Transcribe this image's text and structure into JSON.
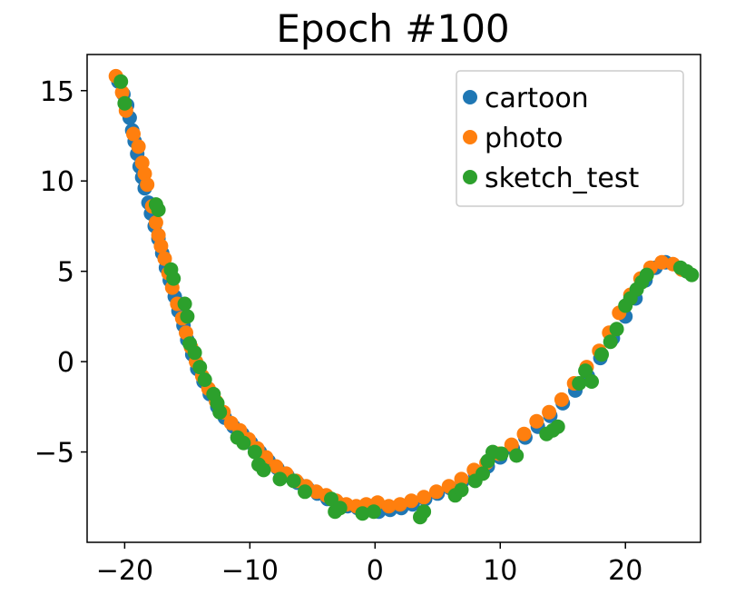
{
  "chart_data": {
    "type": "scatter",
    "title": "Epoch #100",
    "xlabel": "",
    "ylabel": "",
    "xlim": [
      -23,
      26
    ],
    "ylim": [
      -10,
      17
    ],
    "xticks": [
      -20,
      -10,
      0,
      10,
      20
    ],
    "xtick_labels": [
      "−20",
      "−10",
      "0",
      "10",
      "20"
    ],
    "yticks": [
      -5,
      0,
      5,
      10,
      15
    ],
    "ytick_labels": [
      "−5",
      "0",
      "5",
      "10",
      "15"
    ],
    "grid": false,
    "legend_position": "top-right",
    "series": [
      {
        "name": "cartoon",
        "color": "#1f77b4",
        "points": [
          [
            -20.5,
            15.5
          ],
          [
            -20.1,
            14.8
          ],
          [
            -19.8,
            14.2
          ],
          [
            -19.6,
            13.5
          ],
          [
            -19.4,
            12.8
          ],
          [
            -19.2,
            12.2
          ],
          [
            -19.0,
            11.5
          ],
          [
            -18.8,
            10.8
          ],
          [
            -18.6,
            10.2
          ],
          [
            -18.4,
            9.6
          ],
          [
            -18.1,
            8.8
          ],
          [
            -17.9,
            8.2
          ],
          [
            -17.6,
            7.5
          ],
          [
            -17.3,
            6.8
          ],
          [
            -17.0,
            6.0
          ],
          [
            -16.7,
            5.2
          ],
          [
            -16.4,
            4.5
          ],
          [
            -16.0,
            3.6
          ],
          [
            -15.7,
            2.8
          ],
          [
            -15.3,
            2.0
          ],
          [
            -15.0,
            1.2
          ],
          [
            -14.6,
            0.4
          ],
          [
            -14.2,
            -0.4
          ],
          [
            -13.7,
            -1.1
          ],
          [
            -13.2,
            -1.8
          ],
          [
            -12.6,
            -2.5
          ],
          [
            -12.0,
            -3.1
          ],
          [
            -11.3,
            -3.6
          ],
          [
            -10.6,
            -4.0
          ],
          [
            -9.9,
            -4.5
          ],
          [
            -9.2,
            -5.0
          ],
          [
            -8.5,
            -5.5
          ],
          [
            -7.8,
            -5.9
          ],
          [
            -7.0,
            -6.3
          ],
          [
            -6.2,
            -6.7
          ],
          [
            -5.4,
            -7.0
          ],
          [
            -4.6,
            -7.3
          ],
          [
            -3.8,
            -7.6
          ],
          [
            -3.0,
            -7.8
          ],
          [
            -2.2,
            -8.0
          ],
          [
            -1.4,
            -8.1
          ],
          [
            -0.6,
            -8.2
          ],
          [
            0.3,
            -8.3
          ],
          [
            1.2,
            -8.2
          ],
          [
            2.1,
            -8.1
          ],
          [
            3.0,
            -7.9
          ],
          [
            4.0,
            -7.6
          ],
          [
            5.0,
            -7.3
          ],
          [
            6.0,
            -7.0
          ],
          [
            7.0,
            -6.6
          ],
          [
            8.0,
            -6.2
          ],
          [
            9.0,
            -5.8
          ],
          [
            10.0,
            -5.3
          ],
          [
            11.0,
            -4.8
          ],
          [
            12.0,
            -4.2
          ],
          [
            13.0,
            -3.6
          ],
          [
            14.0,
            -3.0
          ],
          [
            15.0,
            -2.3
          ],
          [
            16.0,
            -1.6
          ],
          [
            17.0,
            -0.8
          ],
          [
            18.0,
            0.2
          ],
          [
            19.0,
            1.3
          ],
          [
            20.0,
            2.5
          ],
          [
            20.8,
            3.5
          ],
          [
            21.6,
            4.5
          ],
          [
            22.4,
            5.2
          ],
          [
            23.2,
            5.5
          ]
        ]
      },
      {
        "name": "photo",
        "color": "#ff7f0e",
        "points": [
          [
            -20.7,
            15.8
          ],
          [
            -20.2,
            14.9
          ],
          [
            -19.9,
            13.9
          ],
          [
            -19.3,
            12.6
          ],
          [
            -18.9,
            11.9
          ],
          [
            -18.6,
            11.0
          ],
          [
            -18.4,
            10.4
          ],
          [
            -18.2,
            9.8
          ],
          [
            -17.8,
            8.6
          ],
          [
            -17.5,
            7.7
          ],
          [
            -17.3,
            7.0
          ],
          [
            -17.1,
            6.4
          ],
          [
            -16.8,
            5.7
          ],
          [
            -16.5,
            4.9
          ],
          [
            -16.2,
            4.1
          ],
          [
            -15.8,
            3.2
          ],
          [
            -15.4,
            2.4
          ],
          [
            -15.1,
            1.6
          ],
          [
            -14.7,
            0.8
          ],
          [
            -14.3,
            0.0
          ],
          [
            -13.8,
            -0.8
          ],
          [
            -13.3,
            -1.5
          ],
          [
            -12.7,
            -2.2
          ],
          [
            -12.1,
            -2.8
          ],
          [
            -11.5,
            -3.4
          ],
          [
            -10.8,
            -3.8
          ],
          [
            -10.1,
            -4.3
          ],
          [
            -9.4,
            -4.8
          ],
          [
            -8.7,
            -5.3
          ],
          [
            -7.9,
            -5.8
          ],
          [
            -7.1,
            -6.2
          ],
          [
            -6.3,
            -6.6
          ],
          [
            -5.5,
            -6.9
          ],
          [
            -4.7,
            -7.2
          ],
          [
            -3.9,
            -7.4
          ],
          [
            -3.1,
            -7.7
          ],
          [
            -2.3,
            -7.9
          ],
          [
            -1.5,
            -8.0
          ],
          [
            -0.7,
            -7.9
          ],
          [
            0.2,
            -7.8
          ],
          [
            1.1,
            -8.0
          ],
          [
            2.0,
            -7.9
          ],
          [
            2.9,
            -7.7
          ],
          [
            3.9,
            -7.5
          ],
          [
            4.9,
            -7.2
          ],
          [
            5.9,
            -6.9
          ],
          [
            6.9,
            -6.5
          ],
          [
            7.9,
            -6.0
          ],
          [
            8.9,
            -5.6
          ],
          [
            9.9,
            -5.1
          ],
          [
            10.9,
            -4.6
          ],
          [
            11.9,
            -4.0
          ],
          [
            12.9,
            -3.3
          ],
          [
            13.9,
            -2.8
          ],
          [
            14.9,
            -2.1
          ],
          [
            15.9,
            -1.2
          ],
          [
            16.9,
            -0.3
          ],
          [
            17.9,
            0.6
          ],
          [
            18.7,
            1.6
          ],
          [
            19.5,
            2.7
          ],
          [
            20.4,
            3.7
          ],
          [
            21.2,
            4.6
          ],
          [
            22.0,
            5.2
          ],
          [
            22.9,
            5.5
          ],
          [
            23.8,
            5.4
          ],
          [
            24.5,
            5.1
          ]
        ]
      },
      {
        "name": "sketch_test",
        "color": "#2ca02c",
        "points": [
          [
            -20.3,
            15.5
          ],
          [
            -20.0,
            14.3
          ],
          [
            -17.5,
            8.7
          ],
          [
            -17.3,
            8.4
          ],
          [
            -16.3,
            5.1
          ],
          [
            -16.1,
            4.6
          ],
          [
            -15.2,
            3.2
          ],
          [
            -15.0,
            2.5
          ],
          [
            -14.8,
            1.0
          ],
          [
            -14.4,
            0.5
          ],
          [
            -14.0,
            -0.3
          ],
          [
            -13.6,
            -1.0
          ],
          [
            -12.9,
            -1.8
          ],
          [
            -12.6,
            -2.3
          ],
          [
            -12.4,
            -2.8
          ],
          [
            -11.0,
            -4.2
          ],
          [
            -10.5,
            -4.5
          ],
          [
            -9.6,
            -5.0
          ],
          [
            -9.3,
            -5.7
          ],
          [
            -8.9,
            -6.0
          ],
          [
            -7.6,
            -6.5
          ],
          [
            -6.5,
            -6.6
          ],
          [
            -5.6,
            -7.2
          ],
          [
            -3.5,
            -7.6
          ],
          [
            -3.2,
            -8.3
          ],
          [
            -2.8,
            -8.1
          ],
          [
            -1.0,
            -8.4
          ],
          [
            -0.1,
            -8.3
          ],
          [
            3.6,
            -8.6
          ],
          [
            3.9,
            -8.3
          ],
          [
            6.4,
            -7.4
          ],
          [
            6.9,
            -7.1
          ],
          [
            8.0,
            -6.6
          ],
          [
            8.6,
            -6.2
          ],
          [
            9.0,
            -5.5
          ],
          [
            9.4,
            -5.0
          ],
          [
            10.1,
            -5.1
          ],
          [
            11.3,
            -5.2
          ],
          [
            13.7,
            -4.0
          ],
          [
            14.2,
            -3.8
          ],
          [
            14.6,
            -3.6
          ],
          [
            16.3,
            -1.2
          ],
          [
            16.8,
            -0.5
          ],
          [
            17.3,
            -1.1
          ],
          [
            18.1,
            0.4
          ],
          [
            18.8,
            1.1
          ],
          [
            19.3,
            1.8
          ],
          [
            20.0,
            3.1
          ],
          [
            20.4,
            3.5
          ],
          [
            20.9,
            4.0
          ],
          [
            21.3,
            4.4
          ],
          [
            21.7,
            4.8
          ],
          [
            24.4,
            5.2
          ],
          [
            24.9,
            5.0
          ],
          [
            25.3,
            4.8
          ]
        ]
      }
    ]
  }
}
